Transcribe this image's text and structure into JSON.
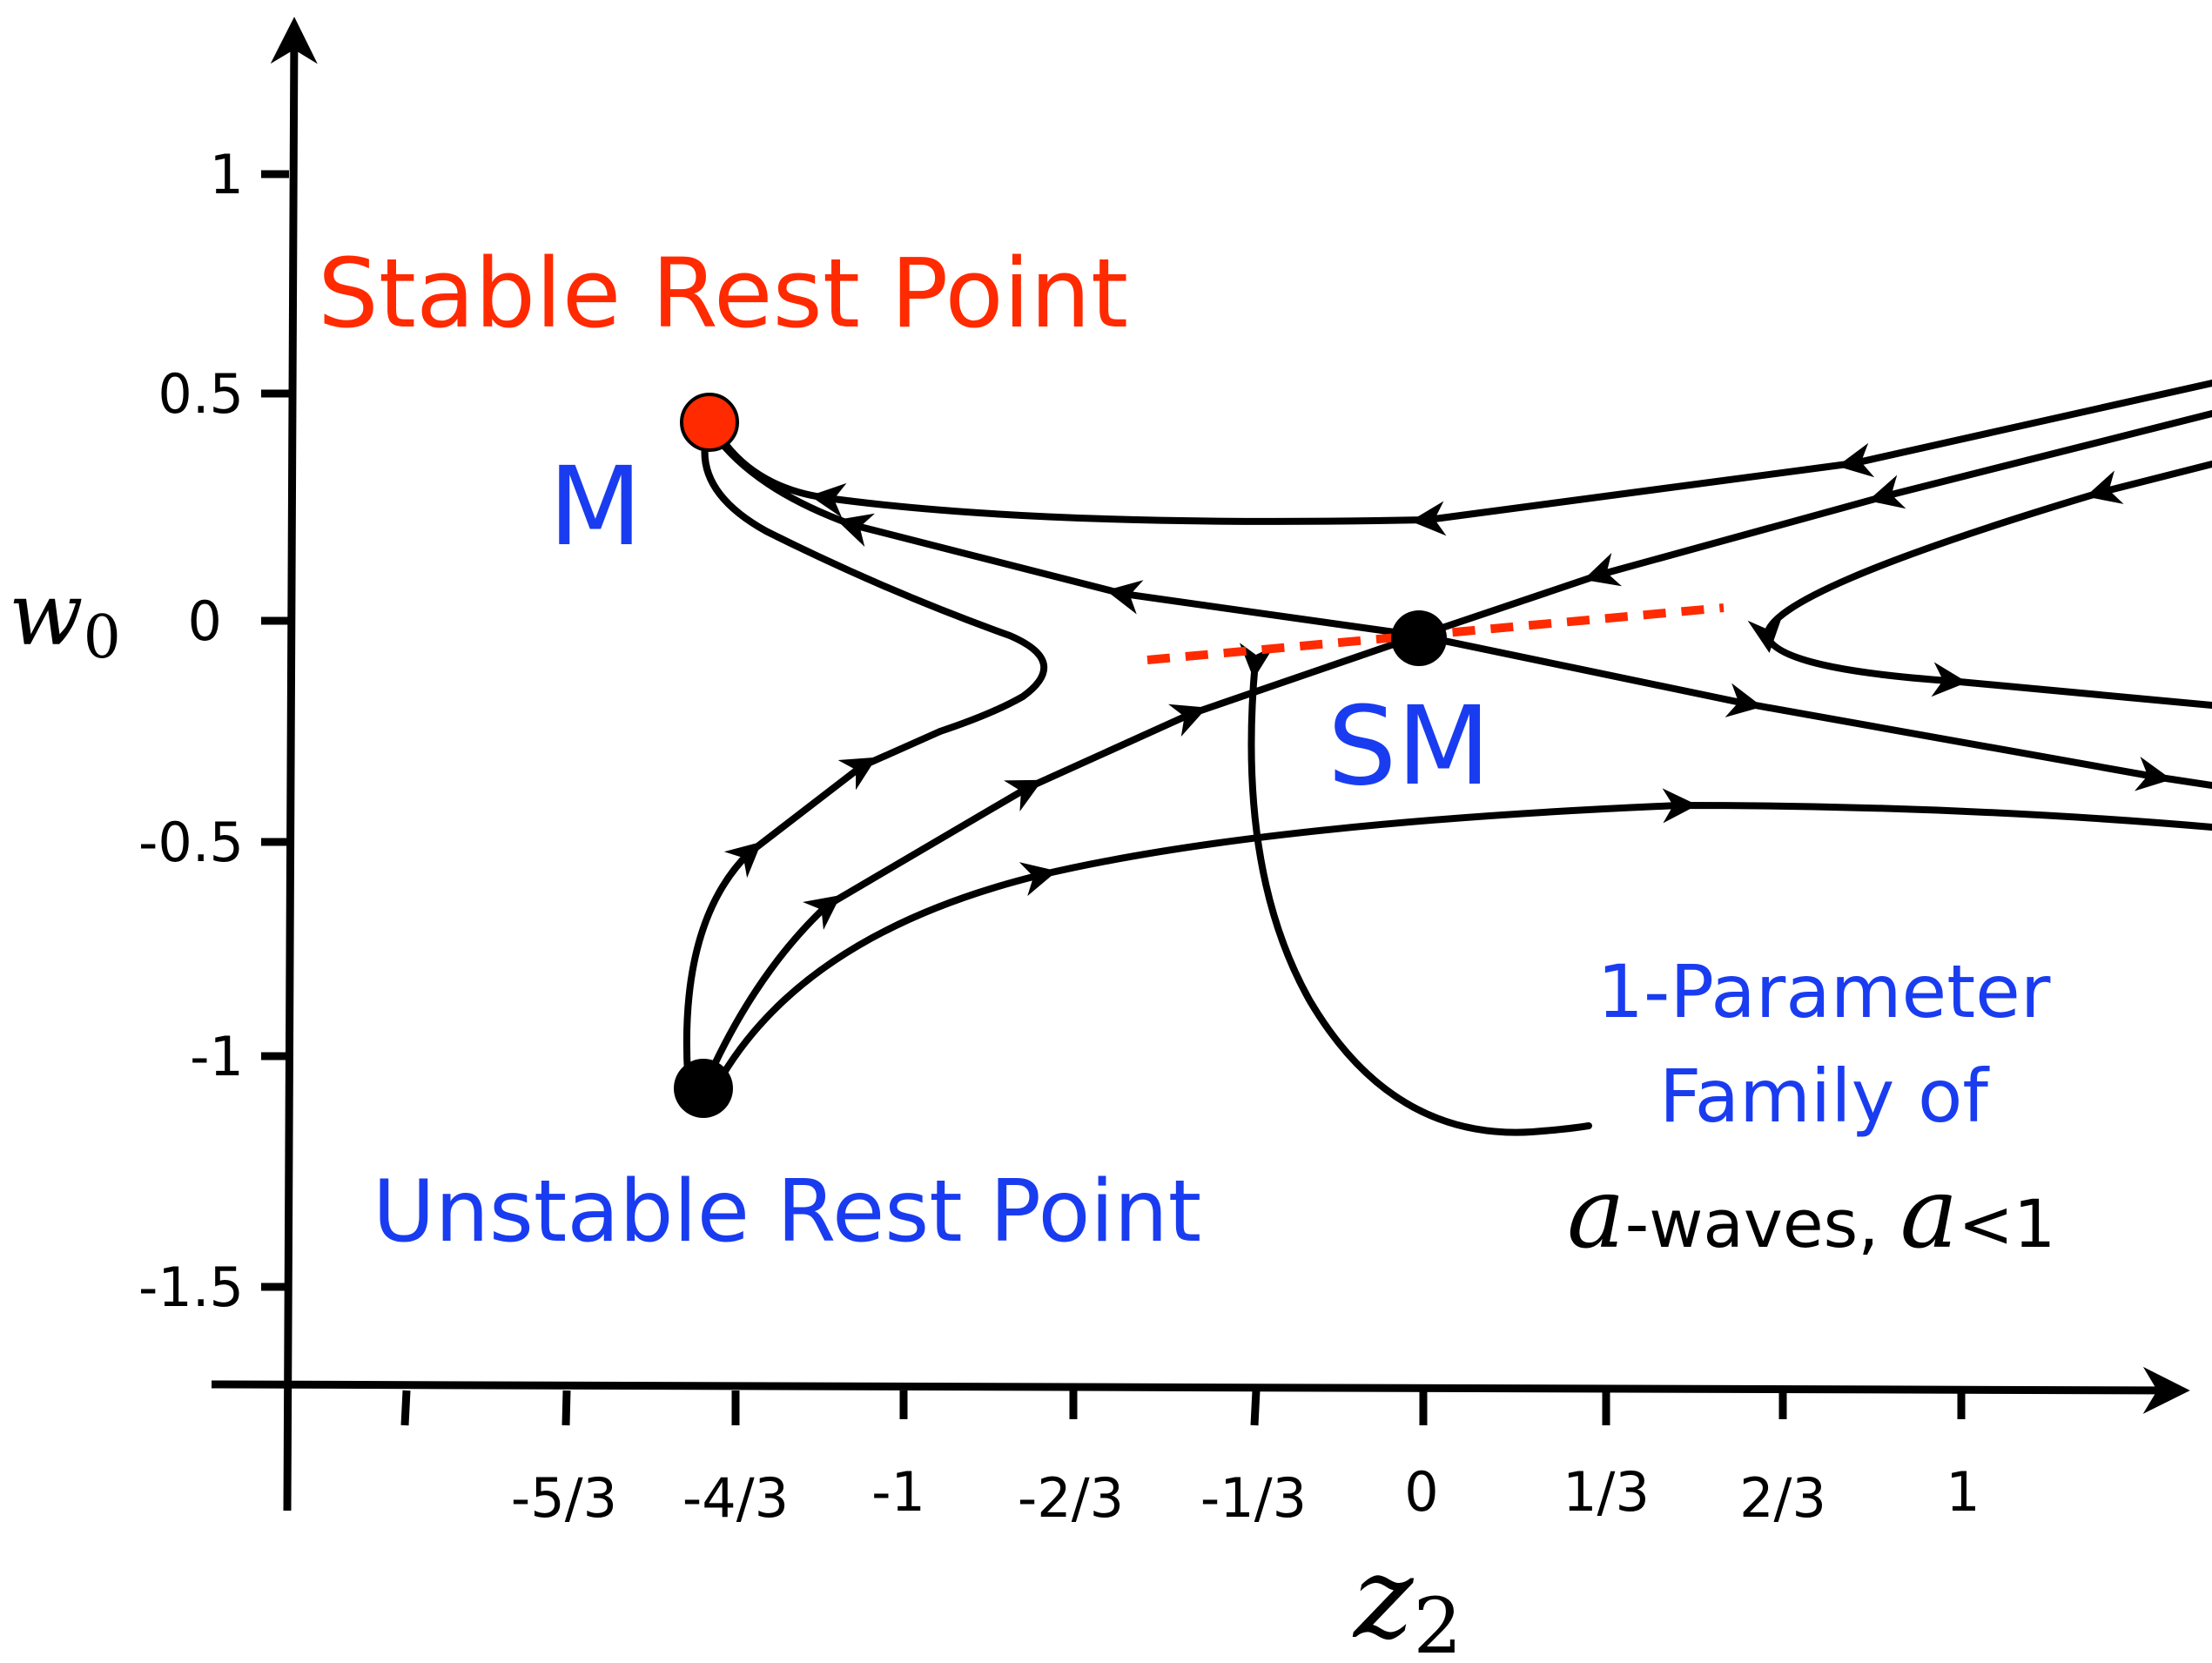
{
  "axes": {
    "x_label": {
      "base": "z",
      "sub": "2"
    },
    "y_label": {
      "base": "w",
      "sub": "0"
    },
    "x_ticks": [
      "-5/3",
      "-4/3",
      "-1",
      "-2/3",
      "-1/3",
      "0",
      "1/3",
      "2/3",
      "1"
    ],
    "y_ticks": [
      "1",
      "0.5",
      "0",
      "-0.5",
      "-1",
      "-1.5"
    ]
  },
  "labels": {
    "stable": "Stable Rest Point",
    "m": "M",
    "sm": "SM",
    "unstable": "Unstable Rest Point",
    "family_line1": "1-Parameter",
    "family_line2": "Family of",
    "family_a1": "a",
    "family_mid": "-waves, ",
    "family_a2": "a",
    "family_tail": "<1"
  },
  "colors": {
    "stable_point": "#ff2a00",
    "blue_text": "#1a3cf0",
    "red_text": "#ff2a00",
    "dashed_line": "#ff2a00",
    "ink": "#000000"
  },
  "icons": {
    "stable_rest_point": "filled-red-circle",
    "saddle_point": "filled-black-circle",
    "unstable_rest_point": "filled-black-circle",
    "flow_direction": "arrowhead"
  }
}
